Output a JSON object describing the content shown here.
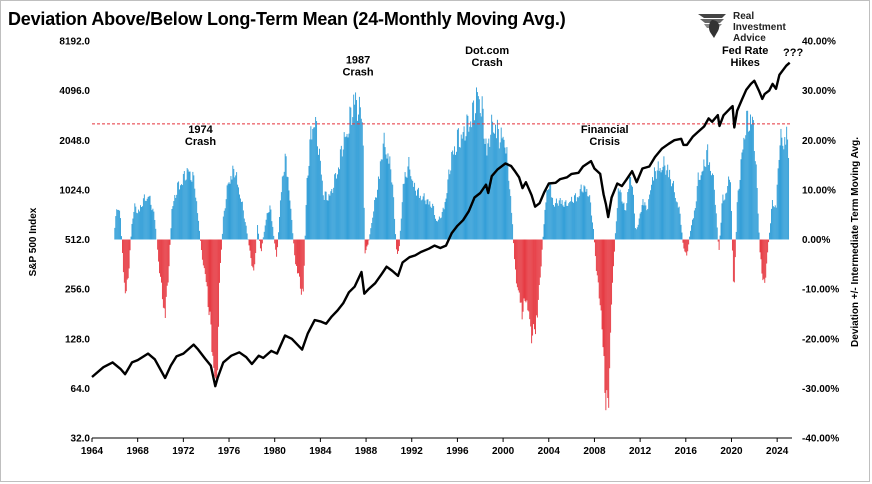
{
  "title": "Deviation Above/Below Long-Term Mean (24-Monthly Moving Avg.)",
  "logo": {
    "lines": [
      "Real",
      "Investment",
      "Advice"
    ]
  },
  "chart_data": {
    "type": "bar",
    "title": "Deviation Above/Below Long-Term Mean (24-Monthly Moving Avg.)",
    "xlabel": "",
    "ylabel": "S&P 500 Index",
    "y2label": "Deviation +/- Intermediate Term Moving Avg.",
    "x_ticks": [
      "1964",
      "1968",
      "1972",
      "1976",
      "1980",
      "1984",
      "1988",
      "1992",
      "1996",
      "2000",
      "2004",
      "2008",
      "2012",
      "2016",
      "2020",
      "2024"
    ],
    "y_ticks": [
      "8192.0",
      "4096.0",
      "2048.0",
      "1024.0",
      "512.0",
      "256.0",
      "128.0",
      "64.0",
      "32.0"
    ],
    "y_ticks_values": [
      8192,
      4096,
      2048,
      1024,
      512,
      256,
      128,
      64,
      32
    ],
    "y2_ticks": [
      "40.00%",
      "30.00%",
      "20.00%",
      "10.00%",
      "0.00%",
      "-10.00%",
      "-20.00%",
      "-30.00%",
      "-40.00%"
    ],
    "y2_ticks_values": [
      40,
      30,
      20,
      10,
      0,
      -10,
      -20,
      -30,
      -40
    ],
    "xlim": [
      1964,
      2025.3
    ],
    "ylim_log2": [
      32,
      8192
    ],
    "y2lim": [
      -40,
      40
    ],
    "threshold_pct": 23.3,
    "grid": false,
    "colors": {
      "positive": "#2b9bd6",
      "negative": "#e5323b",
      "line": "#000000",
      "threshold": "#e5323b"
    },
    "deviation_series": {
      "name": "",
      "points": [
        [
          1966.0,
          3
        ],
        [
          1966.2,
          8
        ],
        [
          1966.5,
          5
        ],
        [
          1966.8,
          -10
        ],
        [
          1967.0,
          -12
        ],
        [
          1967.2,
          -8
        ],
        [
          1967.5,
          4
        ],
        [
          1967.8,
          8
        ],
        [
          1968.0,
          6
        ],
        [
          1968.5,
          9
        ],
        [
          1969.0,
          10
        ],
        [
          1969.5,
          5
        ],
        [
          1969.8,
          -4
        ],
        [
          1970.2,
          -14
        ],
        [
          1970.4,
          -18
        ],
        [
          1970.7,
          -8
        ],
        [
          1971.0,
          7
        ],
        [
          1971.5,
          12
        ],
        [
          1972.0,
          14
        ],
        [
          1972.5,
          16
        ],
        [
          1973.0,
          13
        ],
        [
          1973.3,
          5
        ],
        [
          1973.6,
          -3
        ],
        [
          1974.0,
          -10
        ],
        [
          1974.4,
          -20
        ],
        [
          1974.7,
          -31
        ],
        [
          1974.9,
          -36
        ],
        [
          1975.2,
          -8
        ],
        [
          1975.5,
          5
        ],
        [
          1976.0,
          14
        ],
        [
          1976.5,
          16
        ],
        [
          1977.0,
          10
        ],
        [
          1977.5,
          3
        ],
        [
          1977.9,
          -4
        ],
        [
          1978.2,
          -8
        ],
        [
          1978.5,
          3
        ],
        [
          1978.8,
          -3
        ],
        [
          1979.2,
          4
        ],
        [
          1979.6,
          8
        ],
        [
          1980.0,
          -1
        ],
        [
          1980.2,
          -4
        ],
        [
          1980.5,
          9
        ],
        [
          1980.9,
          19
        ],
        [
          1981.2,
          14
        ],
        [
          1981.5,
          4
        ],
        [
          1981.8,
          -5
        ],
        [
          1982.2,
          -10
        ],
        [
          1982.5,
          -13
        ],
        [
          1982.8,
          12
        ],
        [
          1983.2,
          25
        ],
        [
          1983.5,
          28
        ],
        [
          1983.9,
          20
        ],
        [
          1984.3,
          10
        ],
        [
          1984.7,
          10
        ],
        [
          1985.0,
          11
        ],
        [
          1985.5,
          16
        ],
        [
          1986.0,
          22
        ],
        [
          1986.5,
          26
        ],
        [
          1987.0,
          33
        ],
        [
          1987.4,
          29
        ],
        [
          1987.7,
          30
        ],
        [
          1987.9,
          -3
        ],
        [
          1988.2,
          -1
        ],
        [
          1988.5,
          4
        ],
        [
          1989.0,
          12
        ],
        [
          1989.5,
          22
        ],
        [
          1989.9,
          20
        ],
        [
          1990.3,
          14
        ],
        [
          1990.7,
          -4
        ],
        [
          1990.9,
          -2
        ],
        [
          1991.3,
          14
        ],
        [
          1991.8,
          17
        ],
        [
          1992.2,
          12
        ],
        [
          1992.8,
          10
        ],
        [
          1993.3,
          9
        ],
        [
          1993.8,
          8
        ],
        [
          1994.2,
          4
        ],
        [
          1994.7,
          6
        ],
        [
          1995.0,
          10
        ],
        [
          1995.5,
          19
        ],
        [
          1996.0,
          23
        ],
        [
          1996.5,
          24
        ],
        [
          1997.0,
          27
        ],
        [
          1997.5,
          30
        ],
        [
          1997.8,
          34
        ],
        [
          1998.2,
          29
        ],
        [
          1998.6,
          20
        ],
        [
          1998.9,
          25
        ],
        [
          1999.3,
          27
        ],
        [
          1999.7,
          23
        ],
        [
          2000.1,
          24
        ],
        [
          2000.5,
          15
        ],
        [
          2000.8,
          5
        ],
        [
          2001.0,
          -5
        ],
        [
          2001.3,
          -12
        ],
        [
          2001.7,
          -17
        ],
        [
          2002.0,
          -13
        ],
        [
          2002.3,
          -19
        ],
        [
          2002.6,
          -22
        ],
        [
          2002.9,
          -20
        ],
        [
          2003.1,
          -14
        ],
        [
          2003.4,
          -3
        ],
        [
          2003.7,
          8
        ],
        [
          2004.0,
          13
        ],
        [
          2004.5,
          8
        ],
        [
          2005.0,
          9
        ],
        [
          2005.5,
          8
        ],
        [
          2006.0,
          9
        ],
        [
          2006.5,
          10
        ],
        [
          2007.0,
          12
        ],
        [
          2007.5,
          11
        ],
        [
          2007.9,
          3
        ],
        [
          2008.2,
          -8
        ],
        [
          2008.5,
          -14
        ],
        [
          2008.8,
          -28
        ],
        [
          2009.0,
          -36
        ],
        [
          2009.2,
          -40
        ],
        [
          2009.5,
          -15
        ],
        [
          2009.8,
          0
        ],
        [
          2010.1,
          12
        ],
        [
          2010.4,
          10
        ],
        [
          2010.7,
          6
        ],
        [
          2011.0,
          13
        ],
        [
          2011.3,
          14
        ],
        [
          2011.6,
          2
        ],
        [
          2011.9,
          4
        ],
        [
          2012.2,
          9
        ],
        [
          2012.7,
          7
        ],
        [
          2013.0,
          14
        ],
        [
          2013.5,
          16
        ],
        [
          2014.0,
          17
        ],
        [
          2014.5,
          16
        ],
        [
          2015.0,
          11
        ],
        [
          2015.5,
          6
        ],
        [
          2015.8,
          -2
        ],
        [
          2016.1,
          -4
        ],
        [
          2016.4,
          2
        ],
        [
          2016.8,
          7
        ],
        [
          2017.1,
          14
        ],
        [
          2017.5,
          16
        ],
        [
          2017.9,
          20
        ],
        [
          2018.1,
          18
        ],
        [
          2018.5,
          12
        ],
        [
          2018.9,
          -3
        ],
        [
          2019.2,
          9
        ],
        [
          2019.6,
          11
        ],
        [
          2019.9,
          16
        ],
        [
          2020.2,
          -14
        ],
        [
          2020.5,
          8
        ],
        [
          2020.9,
          19
        ],
        [
          2021.2,
          26
        ],
        [
          2021.6,
          28
        ],
        [
          2021.9,
          27
        ],
        [
          2022.2,
          14
        ],
        [
          2022.5,
          -3
        ],
        [
          2022.7,
          -8
        ],
        [
          2022.9,
          -11
        ],
        [
          2023.2,
          -2
        ],
        [
          2023.6,
          9
        ],
        [
          2023.9,
          7
        ],
        [
          2024.2,
          22
        ],
        [
          2024.5,
          23
        ],
        [
          2024.8,
          24
        ],
        [
          2025.0,
          21
        ]
      ]
    },
    "price_series": {
      "name": "S&P 500 Index",
      "points": [
        [
          1964.0,
          75
        ],
        [
          1965.0,
          86
        ],
        [
          1965.8,
          92
        ],
        [
          1966.5,
          84
        ],
        [
          1966.9,
          78
        ],
        [
          1967.5,
          92
        ],
        [
          1968.0,
          95
        ],
        [
          1968.9,
          104
        ],
        [
          1969.5,
          96
        ],
        [
          1970.4,
          74
        ],
        [
          1970.9,
          88
        ],
        [
          1971.4,
          100
        ],
        [
          1972.0,
          104
        ],
        [
          1972.9,
          118
        ],
        [
          1973.3,
          110
        ],
        [
          1973.9,
          97
        ],
        [
          1974.4,
          88
        ],
        [
          1974.8,
          66
        ],
        [
          1975.0,
          74
        ],
        [
          1975.5,
          92
        ],
        [
          1976.2,
          101
        ],
        [
          1976.9,
          106
        ],
        [
          1977.5,
          99
        ],
        [
          1978.0,
          90
        ],
        [
          1978.6,
          101
        ],
        [
          1979.0,
          98
        ],
        [
          1979.7,
          108
        ],
        [
          1980.2,
          104
        ],
        [
          1980.9,
          134
        ],
        [
          1981.5,
          128
        ],
        [
          1982.4,
          110
        ],
        [
          1982.9,
          138
        ],
        [
          1983.5,
          166
        ],
        [
          1984.0,
          163
        ],
        [
          1984.5,
          158
        ],
        [
          1985.0,
          175
        ],
        [
          1985.5,
          190
        ],
        [
          1986.0,
          210
        ],
        [
          1986.5,
          245
        ],
        [
          1987.0,
          265
        ],
        [
          1987.6,
          325
        ],
        [
          1987.85,
          240
        ],
        [
          1988.2,
          255
        ],
        [
          1988.8,
          278
        ],
        [
          1989.4,
          318
        ],
        [
          1989.8,
          350
        ],
        [
          1990.3,
          330
        ],
        [
          1990.8,
          308
        ],
        [
          1991.2,
          372
        ],
        [
          1991.8,
          400
        ],
        [
          1992.3,
          410
        ],
        [
          1992.8,
          430
        ],
        [
          1993.5,
          450
        ],
        [
          1994.0,
          470
        ],
        [
          1994.5,
          455
        ],
        [
          1995.0,
          470
        ],
        [
          1995.5,
          560
        ],
        [
          1996.0,
          620
        ],
        [
          1996.5,
          670
        ],
        [
          1997.0,
          760
        ],
        [
          1997.5,
          920
        ],
        [
          1998.0,
          980
        ],
        [
          1998.5,
          1100
        ],
        [
          1998.7,
          980
        ],
        [
          1999.0,
          1240
        ],
        [
          1999.5,
          1360
        ],
        [
          2000.2,
          1480
        ],
        [
          2000.7,
          1430
        ],
        [
          2001.0,
          1340
        ],
        [
          2001.4,
          1220
        ],
        [
          2001.7,
          1050
        ],
        [
          2002.0,
          1140
        ],
        [
          2002.5,
          950
        ],
        [
          2002.8,
          810
        ],
        [
          2003.2,
          850
        ],
        [
          2003.6,
          990
        ],
        [
          2004.0,
          1120
        ],
        [
          2004.6,
          1130
        ],
        [
          2005.0,
          1190
        ],
        [
          2005.6,
          1220
        ],
        [
          2006.0,
          1280
        ],
        [
          2006.6,
          1300
        ],
        [
          2007.0,
          1420
        ],
        [
          2007.7,
          1530
        ],
        [
          2008.0,
          1380
        ],
        [
          2008.5,
          1280
        ],
        [
          2008.8,
          960
        ],
        [
          2009.0,
          840
        ],
        [
          2009.2,
          700
        ],
        [
          2009.5,
          920
        ],
        [
          2010.0,
          1120
        ],
        [
          2010.4,
          1080
        ],
        [
          2010.8,
          1180
        ],
        [
          2011.3,
          1330
        ],
        [
          2011.7,
          1140
        ],
        [
          2012.2,
          1380
        ],
        [
          2012.8,
          1420
        ],
        [
          2013.3,
          1620
        ],
        [
          2013.9,
          1820
        ],
        [
          2014.5,
          1950
        ],
        [
          2015.0,
          2050
        ],
        [
          2015.6,
          2090
        ],
        [
          2015.8,
          1920
        ],
        [
          2016.1,
          1920
        ],
        [
          2016.6,
          2150
        ],
        [
          2017.0,
          2280
        ],
        [
          2017.6,
          2480
        ],
        [
          2018.0,
          2780
        ],
        [
          2018.3,
          2650
        ],
        [
          2018.8,
          2910
        ],
        [
          2018.95,
          2500
        ],
        [
          2019.3,
          2900
        ],
        [
          2019.9,
          3200
        ],
        [
          2020.1,
          3300
        ],
        [
          2020.25,
          2450
        ],
        [
          2020.5,
          3100
        ],
        [
          2020.9,
          3600
        ],
        [
          2021.3,
          4150
        ],
        [
          2021.7,
          4500
        ],
        [
          2022.0,
          4700
        ],
        [
          2022.4,
          4100
        ],
        [
          2022.7,
          3650
        ],
        [
          2022.9,
          3900
        ],
        [
          2023.3,
          4100
        ],
        [
          2023.6,
          4500
        ],
        [
          2023.9,
          4200
        ],
        [
          2024.2,
          5100
        ],
        [
          2024.5,
          5450
        ],
        [
          2024.8,
          5800
        ],
        [
          2025.1,
          6050
        ]
      ]
    },
    "annotations": [
      {
        "text": "1974\nCrash",
        "x": 1973.5,
        "pct": 19
      },
      {
        "text": "1987\nCrash",
        "x": 1987.3,
        "pct": 33
      },
      {
        "text": "Dot.com\nCrash",
        "x": 1998.6,
        "pct": 35
      },
      {
        "text": "Financial\nCrisis",
        "x": 2008.9,
        "pct": 19
      },
      {
        "text": "Fed Rate\nHikes",
        "x": 2021.2,
        "pct": 35
      },
      {
        "text": "???",
        "x": 2025.4,
        "pct": 37
      }
    ]
  }
}
